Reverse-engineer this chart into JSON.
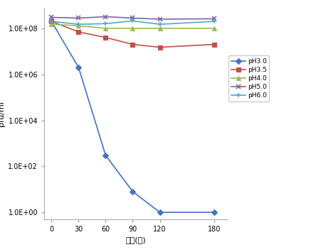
{
  "x": [
    0,
    30,
    60,
    90,
    120,
    180
  ],
  "series_order": [
    "pH3.0",
    "pH3.5",
    "pH4.0",
    "pH5.0",
    "pH6.0"
  ],
  "series": {
    "pH3.0": [
      200000000.0,
      2000000.0,
      300.0,
      8.0,
      1.0,
      1.0
    ],
    "pH3.5": [
      200000000.0,
      70000000.0,
      40000000.0,
      20000000.0,
      15000000.0,
      20000000.0
    ],
    "pH4.0": [
      150000000.0,
      130000000.0,
      100000000.0,
      100000000.0,
      100000000.0,
      100000000.0
    ],
    "pH5.0": [
      300000000.0,
      280000000.0,
      320000000.0,
      280000000.0,
      250000000.0,
      260000000.0
    ],
    "pH6.0": [
      200000000.0,
      150000000.0,
      160000000.0,
      210000000.0,
      150000000.0,
      200000000.0
    ]
  },
  "colors": {
    "pH3.0": "#4472C4",
    "pH3.5": "#C0504D",
    "pH4.0": "#9BBB59",
    "pH5.0": "#8064A2",
    "pH6.0": "#4BACC6"
  },
  "markers": {
    "pH3.0": "D",
    "pH3.5": "s",
    "pH4.0": "^",
    "pH5.0": "x",
    "pH6.0": "+"
  },
  "ylabel": "pfu/ml",
  "xlabel": "시간(분)",
  "ytick_values": [
    1,
    100,
    10000,
    1000000,
    100000000
  ],
  "ytick_labels": [
    "1.0E+00",
    "1.0E+02",
    "1.0E+04",
    "1.0E+06",
    "1.0E+08"
  ],
  "xticks": [
    0,
    30,
    60,
    90,
    120,
    180
  ],
  "xlim": [
    -8,
    195
  ],
  "ylim": [
    0.5,
    800000000.0
  ],
  "background_color": "#FFFFFF",
  "legend_fontsize": 6.5,
  "axis_label_fontsize": 8,
  "tick_fontsize": 7,
  "linewidth": 1.2,
  "markersize": 4
}
